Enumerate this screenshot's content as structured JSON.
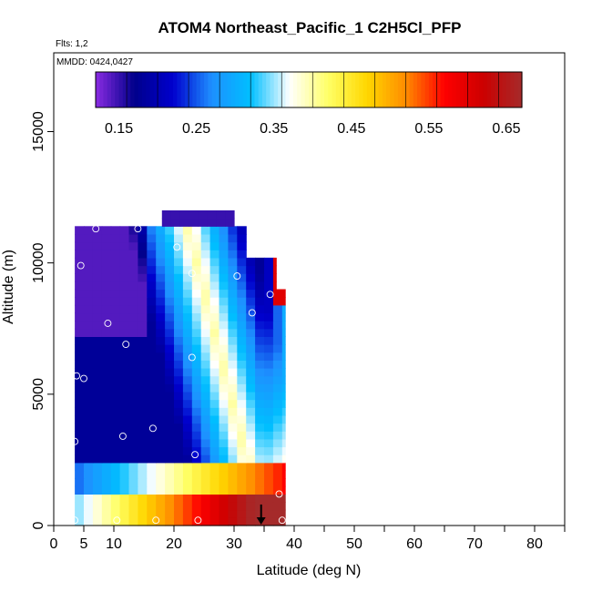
{
  "chart_data": {
    "type": "heatmap",
    "title": "ATOM4 Northeast_Pacific_1 C2H5Cl_PFP",
    "annotations": [
      "Flts: 1,2",
      "MMDD: 0424,0427"
    ],
    "xlabel": "Latitude (deg N)",
    "ylabel": "Altitude (m)",
    "xlim": [
      0,
      85
    ],
    "ylim": [
      0,
      18000
    ],
    "x_ticks": [
      0,
      5,
      10,
      20,
      30,
      40,
      50,
      60,
      70,
      80
    ],
    "x_minor_ticks": [
      35,
      45,
      55,
      65,
      75,
      85
    ],
    "y_ticks": [
      0,
      5000,
      10000,
      15000
    ],
    "colorbar": {
      "range": [
        0.12,
        0.67
      ],
      "ticks": [
        0.15,
        0.25,
        0.35,
        0.45,
        0.55,
        0.65
      ],
      "tick_labels": [
        "0.15",
        "0.25",
        "0.35",
        "0.45",
        "0.55",
        "0.65"
      ],
      "colors": [
        "#8a2be2",
        "#00008b",
        "#0000cd",
        "#1e90ff",
        "#00bfff",
        "#ffffff",
        "#ffff66",
        "#ffd700",
        "#ff8c00",
        "#ff0000",
        "#cc0000",
        "#a52a2a"
      ]
    },
    "marker": {
      "type": "arrow-down",
      "x": 34.5,
      "y_top": 800,
      "y_bottom": 0
    },
    "sample_points": [
      {
        "x": 3.5,
        "y": 200
      },
      {
        "x": 10.5,
        "y": 200
      },
      {
        "x": 17,
        "y": 200
      },
      {
        "x": 24,
        "y": 200
      },
      {
        "x": 38,
        "y": 200
      },
      {
        "x": 37.5,
        "y": 1200
      },
      {
        "x": 3.5,
        "y": 3200
      },
      {
        "x": 11.5,
        "y": 3400
      },
      {
        "x": 16.5,
        "y": 3700
      },
      {
        "x": 23.5,
        "y": 2700
      },
      {
        "x": 3.8,
        "y": 5700
      },
      {
        "x": 5,
        "y": 5600
      },
      {
        "x": 12,
        "y": 6900
      },
      {
        "x": 23,
        "y": 6400
      },
      {
        "x": 9,
        "y": 7700
      },
      {
        "x": 33,
        "y": 8100
      },
      {
        "x": 36,
        "y": 8800
      },
      {
        "x": 4.5,
        "y": 9900
      },
      {
        "x": 23,
        "y": 9600
      },
      {
        "x": 30.5,
        "y": 9500
      },
      {
        "x": 7,
        "y": 11300
      },
      {
        "x": 14,
        "y": 11300
      },
      {
        "x": 20.5,
        "y": 10600
      }
    ]
  }
}
